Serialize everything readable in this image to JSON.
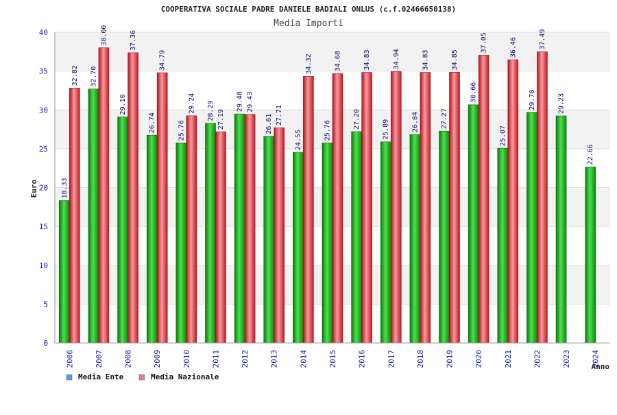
{
  "chart_data": {
    "type": "bar",
    "title": "COOPERATIVA SOCIALE PADRE DANIELE BADIALI ONLUS (c.f.02466650138)",
    "subtitle": "Media Importi",
    "xlabel": "Anno",
    "ylabel": "Euro",
    "ylim": [
      0,
      40
    ],
    "yticks": [
      "0",
      "5",
      "10",
      "15",
      "20",
      "25",
      "30",
      "35",
      "40"
    ],
    "grid": true,
    "legend_position": "bottom-left",
    "categories": [
      "2006",
      "2007",
      "2008",
      "2009",
      "2010",
      "2011",
      "2012",
      "2013",
      "2014",
      "2015",
      "2016",
      "2017",
      "2018",
      "2019",
      "2020",
      "2021",
      "2022",
      "2023",
      "2024"
    ],
    "series": [
      {
        "name": "Media Ente",
        "legend_color": "#5b9bd5",
        "bar_color": "#11b311",
        "values": [
          18.33,
          32.7,
          29.1,
          26.74,
          25.76,
          28.29,
          29.48,
          26.61,
          24.55,
          25.76,
          27.2,
          25.89,
          26.84,
          27.27,
          30.66,
          25.07,
          29.7,
          29.23,
          22.66
        ],
        "labels": [
          "18.33",
          "32.70",
          "29.10",
          "26.74",
          "25.76",
          "28.29",
          "29.48",
          "26.61",
          "24.55",
          "25.76",
          "27.20",
          "25.89",
          "26.84",
          "27.27",
          "30.66",
          "25.07",
          "29.70",
          "29.23",
          "22.66"
        ]
      },
      {
        "name": "Media Nazionale",
        "legend_color": "#d97aa0",
        "bar_color": "#e8323c",
        "values": [
          32.82,
          38.0,
          37.36,
          34.79,
          29.24,
          27.19,
          29.43,
          27.71,
          34.32,
          34.68,
          34.83,
          34.94,
          34.83,
          34.85,
          37.05,
          36.46,
          37.49,
          null,
          null
        ],
        "labels": [
          "32.82",
          "38.00",
          "37.36",
          "34.79",
          "29.24",
          "27.19",
          "29.43",
          "27.71",
          "34.32",
          "34.68",
          "34.83",
          "34.94",
          "34.83",
          "34.85",
          "37.05",
          "36.46",
          "37.49",
          null,
          null
        ]
      }
    ]
  }
}
